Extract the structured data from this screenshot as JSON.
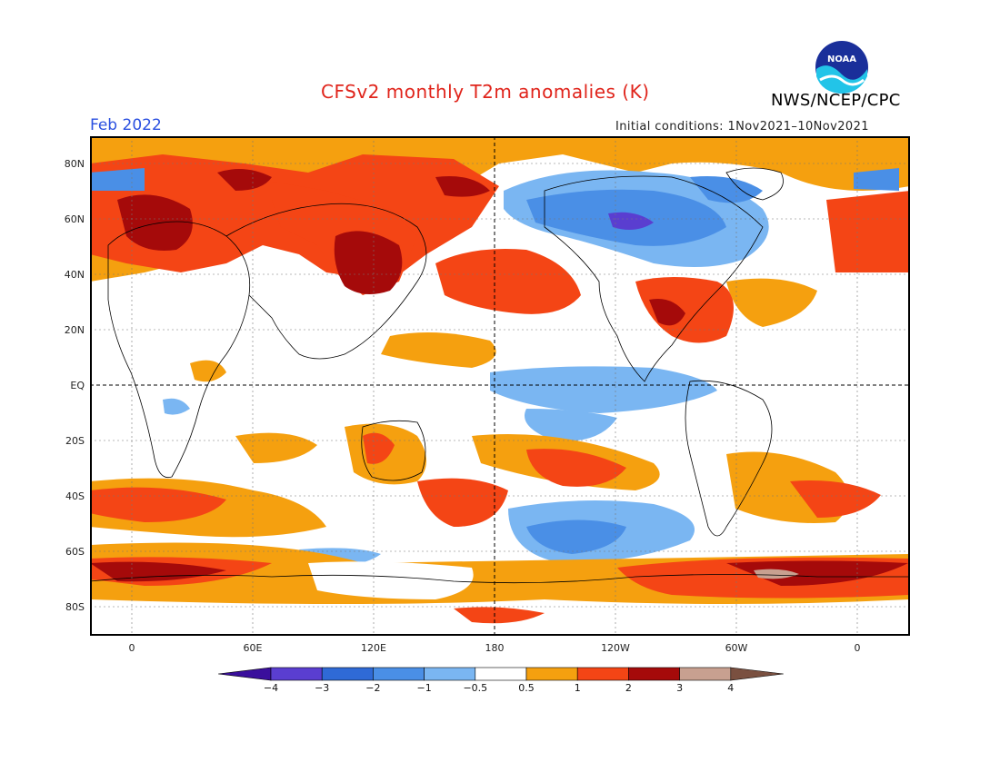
{
  "title": "CFSv2 monthly T2m anomalies (K)",
  "agency": "NWS/NCEP/CPC",
  "valid_month": "Feb 2022",
  "initial_conditions": "Initial conditions: 1Nov2021–10Nov2021",
  "logo_text": "NOAA",
  "lat_labels": [
    "80N",
    "60N",
    "40N",
    "20N",
    "EQ",
    "20S",
    "40S",
    "60S",
    "80S"
  ],
  "lon_labels": [
    "0",
    "60E",
    "120E",
    "180",
    "120W",
    "60W",
    "0"
  ],
  "colorbar": {
    "labels": [
      "−4",
      "−3",
      "−2",
      "−1",
      "−0.5",
      "0.5",
      "1",
      "2",
      "3",
      "4"
    ],
    "colors": [
      "#3a0f9c",
      "#5a3ed0",
      "#2f6ad6",
      "#4a8fe6",
      "#7ab6f2",
      "#ffffff",
      "#f5a00f",
      "#f44515",
      "#a50a0a",
      "#c8a090",
      "#7a5040"
    ]
  },
  "colors": {
    "title": "#e0241b",
    "valid_month": "#2a50e0",
    "warm_05_1": "#f5a00f",
    "warm_1_2": "#f44515",
    "warm_2_3": "#a50a0a",
    "warm_3_4": "#c8a090",
    "cool_05_1": "#7ab6f2",
    "cool_1_2": "#4a8fe6",
    "cool_2_3": "#2f6ad6",
    "cool_3_4": "#5a3ed0"
  }
}
